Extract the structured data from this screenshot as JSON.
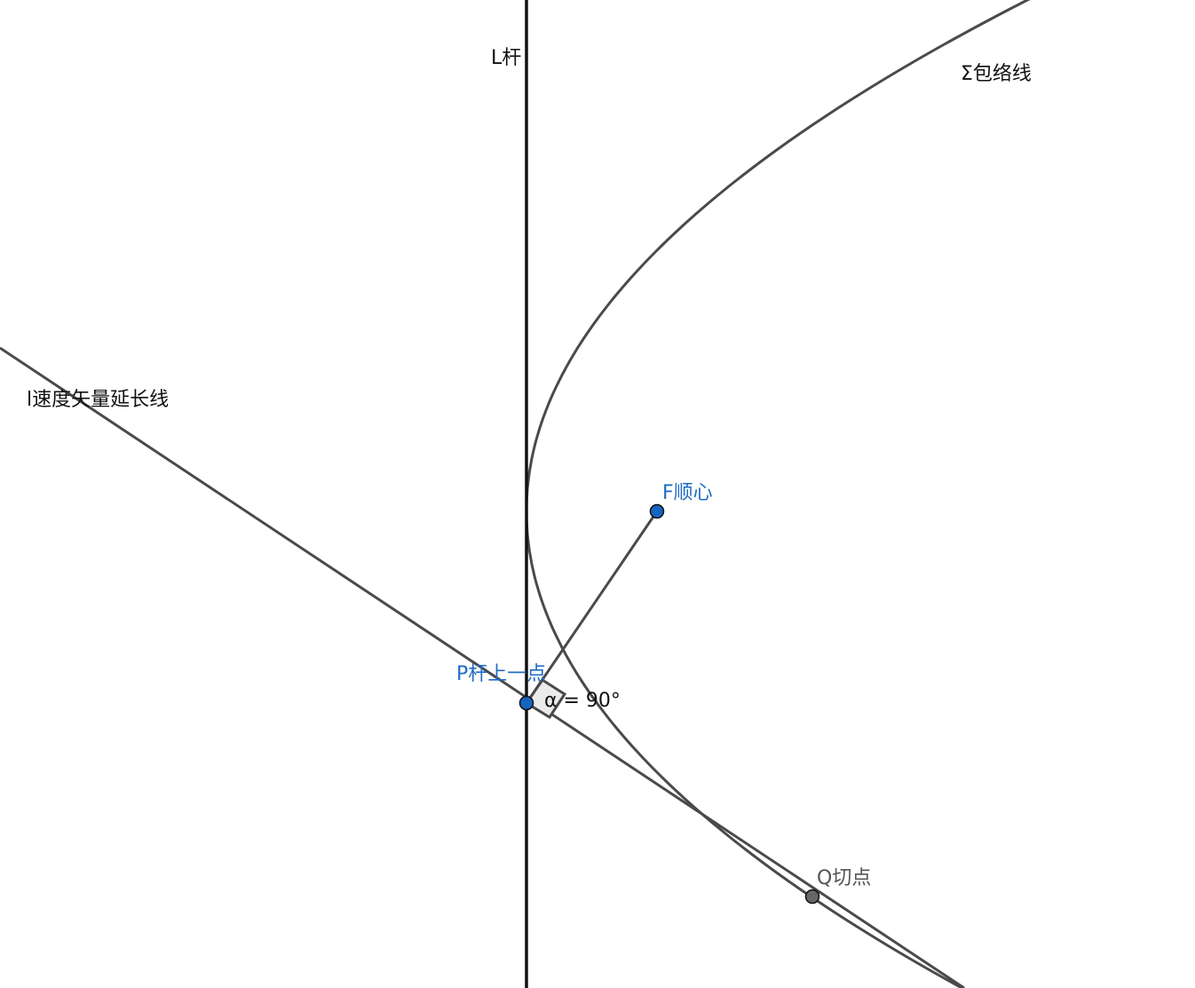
{
  "labels": {
    "rod": "L杆",
    "envelope": "Σ包络线",
    "velocity_line": "l速度矢量延长线",
    "focus": "F顺心",
    "rod_point": "P杆上一点",
    "angle": "α = 90°",
    "tangent_point": "Q切点"
  },
  "colors": {
    "stroke": "#4a4a4a",
    "rod": "#111111",
    "blue_point": "#1565c0",
    "gray_point": "#666666",
    "text_black": "#111111",
    "text_blue": "#1f6cc4",
    "text_gray": "#555555"
  }
}
